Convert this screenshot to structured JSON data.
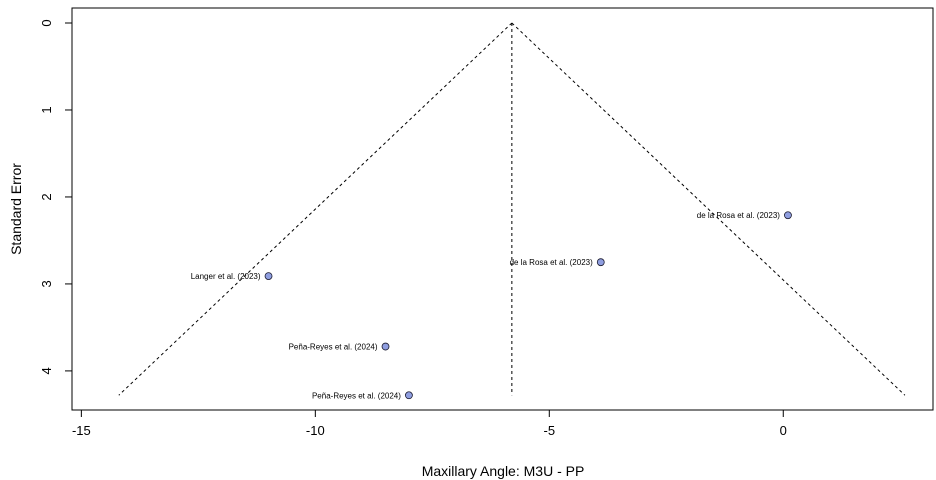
{
  "chart_data": {
    "type": "scatter",
    "subtype": "funnel-plot",
    "xlabel": "Maxillary Angle: M3U - PP",
    "ylabel": "Standard Error",
    "xlim": [
      -15.2,
      3.2
    ],
    "ylim": [
      0,
      4.3
    ],
    "y_reversed": true,
    "x_ticks": [
      -15,
      -10,
      -5,
      0
    ],
    "x_tick_labels": [
      "-15",
      "-10",
      "-5",
      "0"
    ],
    "y_ticks": [
      0,
      1,
      2,
      3,
      4
    ],
    "y_tick_labels": [
      "0",
      "1",
      "2",
      "3",
      "4"
    ],
    "pooled_estimate": -5.8,
    "funnel": {
      "apex": {
        "x": -5.8,
        "se": 0
      },
      "base_se": 4.28,
      "base_left_x": -14.2,
      "base_right_x": 2.6
    },
    "points": [
      {
        "label": "de la Rosa et al. (2023)",
        "x": 0.1,
        "se": 2.21
      },
      {
        "label": "de la Rosa et al. (2023)",
        "x": -3.9,
        "se": 2.75
      },
      {
        "label": "Langer et al. (2023)",
        "x": -11.0,
        "se": 2.91
      },
      {
        "label": "Peña-Reyes et al. (2024)",
        "x": -8.5,
        "se": 3.72
      },
      {
        "label": "Peña-Reyes et al. (2024)",
        "x": -8.0,
        "se": 4.28
      }
    ],
    "point_fill": "#8f9ee0",
    "point_stroke": "#1a1a2e",
    "grid": false,
    "legend": "none"
  }
}
